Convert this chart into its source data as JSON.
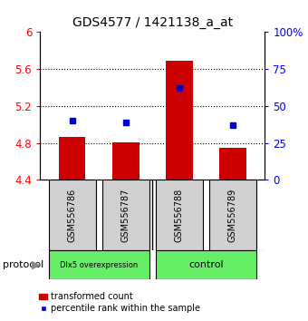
{
  "title": "GDS4577 / 1421138_a_at",
  "samples": [
    "GSM556786",
    "GSM556787",
    "GSM556788",
    "GSM556789"
  ],
  "red_values": [
    4.86,
    4.81,
    5.69,
    4.75
  ],
  "blue_percentiles": [
    40,
    39,
    62,
    37
  ],
  "ylim_left": [
    4.4,
    6.0
  ],
  "ylim_right": [
    0,
    100
  ],
  "yticks_left": [
    4.4,
    4.8,
    5.2,
    5.6,
    6.0
  ],
  "ytick_labels_left": [
    "4.4",
    "4.8",
    "5.2",
    "5.6",
    "6"
  ],
  "yticks_right": [
    0,
    25,
    50,
    75,
    100
  ],
  "ytick_labels_right": [
    "0",
    "25",
    "50",
    "75",
    "100%"
  ],
  "group1_label": "Dlx5 overexpression",
  "group2_label": "control",
  "group_color": "#66ee66",
  "bar_color": "#cc0000",
  "marker_color": "#0000cc",
  "bar_width": 0.5,
  "dotted_yticks": [
    4.8,
    5.2,
    5.6
  ],
  "background_color": "#ffffff"
}
